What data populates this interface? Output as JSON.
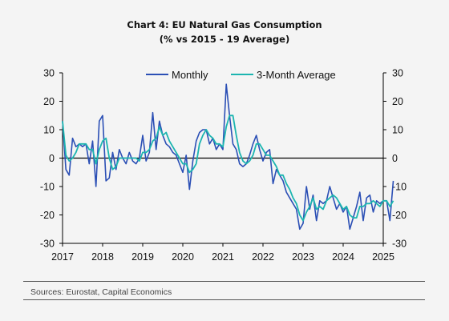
{
  "title": "Chart 4: EU Natural Gas Consumption",
  "subtitle": "(% vs 2015 - 19 Average)",
  "source": "Sources: Eurostat, Capital Economics",
  "colors": {
    "monthly": "#2b4fb5",
    "avg": "#1cb5b0",
    "zero": "#000000",
    "axis": "#000000"
  },
  "chart_data": {
    "type": "line",
    "title": "Chart 4: EU Natural Gas Consumption",
    "subtitle": "(% vs 2015 - 19 Average)",
    "xlabel": "",
    "ylabel": "",
    "xlim": [
      2017,
      2025
    ],
    "ylim": [
      -30,
      30
    ],
    "xticks": [
      "2017",
      "2018",
      "2019",
      "2020",
      "2021",
      "2022",
      "2023",
      "2024",
      "2025"
    ],
    "yticks": [
      "30",
      "20",
      "10",
      "0",
      "-10",
      "-20",
      "-30"
    ],
    "legend": "top-center",
    "grid": false,
    "x_start": "2017-01",
    "series": [
      {
        "name": "Monthly",
        "values": [
          13,
          -4,
          -6,
          7,
          4,
          5,
          4,
          5,
          -2,
          6,
          -10,
          13,
          15,
          -8,
          -7,
          2,
          -4,
          3,
          0,
          -2,
          2,
          -1,
          -2,
          0,
          8,
          -1,
          2,
          16,
          3,
          13,
          8,
          5,
          4,
          2,
          1,
          -2,
          -5,
          1,
          -11,
          -1,
          6,
          9,
          10,
          10,
          5,
          7,
          3,
          5,
          3,
          26,
          15,
          5,
          3,
          -2,
          -3,
          -2,
          1,
          5,
          8,
          3,
          -1,
          2,
          3,
          -9,
          -4,
          -6,
          -8,
          -12,
          -14,
          -16,
          -18,
          -25,
          -23,
          -10,
          -18,
          -13,
          -22,
          -15,
          -16,
          -15,
          -10,
          -14,
          -18,
          -16,
          -19,
          -17,
          -25,
          -21,
          -17,
          -12,
          -22,
          -14,
          -13,
          -19,
          -15,
          -16,
          -15,
          -15,
          -22,
          -8
        ]
      },
      {
        "name": "3-Month Average",
        "values": [
          13,
          1,
          -1,
          0,
          2,
          5,
          5,
          5,
          3,
          3,
          -2,
          3,
          6,
          7,
          0,
          -4,
          -3,
          0,
          0,
          0,
          0,
          0,
          0,
          -1,
          2,
          2,
          3,
          6,
          7,
          11,
          8,
          9,
          6,
          4,
          2,
          0,
          -2,
          -2,
          -5,
          -4,
          -2,
          5,
          8,
          10,
          8,
          7,
          5,
          5,
          4,
          11,
          15,
          15,
          8,
          2,
          -1,
          -2,
          -1,
          1,
          5,
          5,
          3,
          1,
          1,
          -1,
          -3,
          -6,
          -6,
          -9,
          -11,
          -14,
          -16,
          -20,
          -22,
          -19,
          -17,
          -14,
          -18,
          -17,
          -18,
          -15,
          -14,
          -13,
          -14,
          -16,
          -18,
          -17,
          -20,
          -21,
          -21,
          -17,
          -17,
          -16,
          -16,
          -15,
          -16,
          -17,
          -15,
          -15,
          -17,
          -15
        ]
      }
    ]
  }
}
